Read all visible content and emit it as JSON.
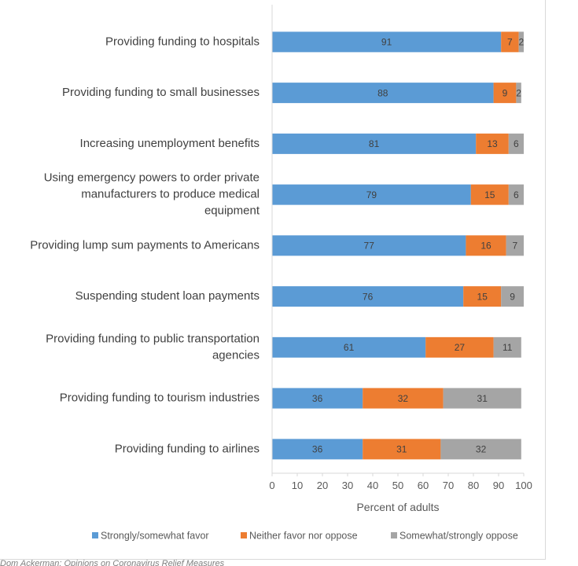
{
  "chart_data": {
    "type": "bar",
    "orientation": "horizontal",
    "stacked": true,
    "categories": [
      "Providing funding to hospitals",
      "Providing funding to small businesses",
      "Increasing unemployment benefits",
      "Using emergency powers to order private manufacturers to produce medical equipment",
      "Providing lump sum payments to Americans",
      "Suspending student loan payments",
      "Providing funding to public transportation agencies",
      "Providing funding to tourism industries",
      "Providing funding to airlines"
    ],
    "category_lines": [
      [
        "Providing funding to hospitals"
      ],
      [
        "Providing funding to small businesses"
      ],
      [
        "Increasing unemployment benefits"
      ],
      [
        "Using emergency powers to order private",
        "manufacturers to produce medical",
        "equipment"
      ],
      [
        "Providing lump sum payments to Americans"
      ],
      [
        "Suspending student loan payments"
      ],
      [
        "Providing funding to public transportation",
        "agencies"
      ],
      [
        "Providing funding to tourism industries"
      ],
      [
        "Providing funding to airlines"
      ]
    ],
    "series": [
      {
        "name": "Strongly/somewhat favor",
        "color": "#5b9bd5",
        "values": [
          91,
          88,
          81,
          79,
          77,
          76,
          61,
          36,
          36
        ]
      },
      {
        "name": "Neither favor nor oppose",
        "color": "#ed7d31",
        "values": [
          7,
          9,
          13,
          15,
          16,
          15,
          27,
          32,
          31
        ]
      },
      {
        "name": "Somewhat/strongly oppose",
        "color": "#a5a5a5",
        "values": [
          2,
          2,
          6,
          6,
          7,
          9,
          11,
          31,
          32
        ]
      }
    ],
    "xlabel": "Percent of adults",
    "xlim": [
      0,
      100
    ],
    "xticks": [
      0,
      10,
      20,
      30,
      40,
      50,
      60,
      70,
      80,
      90,
      100
    ],
    "grid": false,
    "legend_position": "bottom"
  },
  "caption": "Dom Ackerman: Opinions on Coronavirus Relief Measures"
}
